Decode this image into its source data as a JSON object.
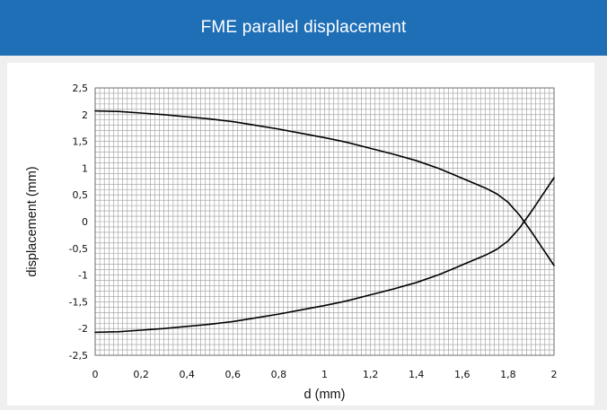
{
  "header": {
    "title": "FME parallel displacement"
  },
  "theme": {
    "header_bg": "#1f6fb7",
    "card_bg": "#efefef",
    "line_color": "#000000",
    "grid_color": "#9a9a9a"
  },
  "chart_data": {
    "type": "line",
    "title": "FME parallel displacement",
    "xlabel": "d (mm)",
    "ylabel": "displacement (mm)",
    "xlim": [
      0,
      2
    ],
    "ylim": [
      -2.5,
      2.5
    ],
    "grid": true,
    "legend": "none",
    "x_ticks": [
      0,
      0.2,
      0.4,
      0.6,
      0.8,
      1,
      1.2,
      1.4,
      1.6,
      1.8,
      2
    ],
    "x_tick_labels": [
      "0",
      "0,2",
      "0,4",
      "0,6",
      "0,8",
      "1",
      "1,2",
      "1,4",
      "1,6",
      "1,8",
      "2"
    ],
    "y_ticks": [
      2.5,
      2,
      1.5,
      1,
      0.5,
      0,
      -0.5,
      -1,
      -1.5,
      -2,
      -2.5
    ],
    "y_tick_labels": [
      "2,5",
      "2",
      "1,5",
      "1",
      "0,5",
      "0",
      "-0,5",
      "-1",
      "-1,5",
      "-2",
      "-2,5"
    ],
    "x": [
      0,
      0.1,
      0.2,
      0.3,
      0.4,
      0.5,
      0.6,
      0.7,
      0.8,
      0.9,
      1.0,
      1.1,
      1.2,
      1.3,
      1.4,
      1.5,
      1.6,
      1.7,
      1.75,
      1.8,
      1.85,
      1.9,
      1.95,
      2.0
    ],
    "series": [
      {
        "values": [
          2.07,
          2.06,
          2.03,
          2.0,
          1.96,
          1.92,
          1.87,
          1.8,
          1.73,
          1.65,
          1.57,
          1.48,
          1.37,
          1.26,
          1.14,
          0.99,
          0.81,
          0.63,
          0.52,
          0.36,
          0.12,
          -0.18,
          -0.5,
          -0.82
        ]
      },
      {
        "values": [
          -2.07,
          -2.06,
          -2.03,
          -2.0,
          -1.96,
          -1.92,
          -1.87,
          -1.8,
          -1.73,
          -1.65,
          -1.57,
          -1.48,
          -1.37,
          -1.26,
          -1.14,
          -0.99,
          -0.81,
          -0.63,
          -0.52,
          -0.36,
          -0.12,
          0.18,
          0.5,
          0.82
        ]
      }
    ]
  }
}
